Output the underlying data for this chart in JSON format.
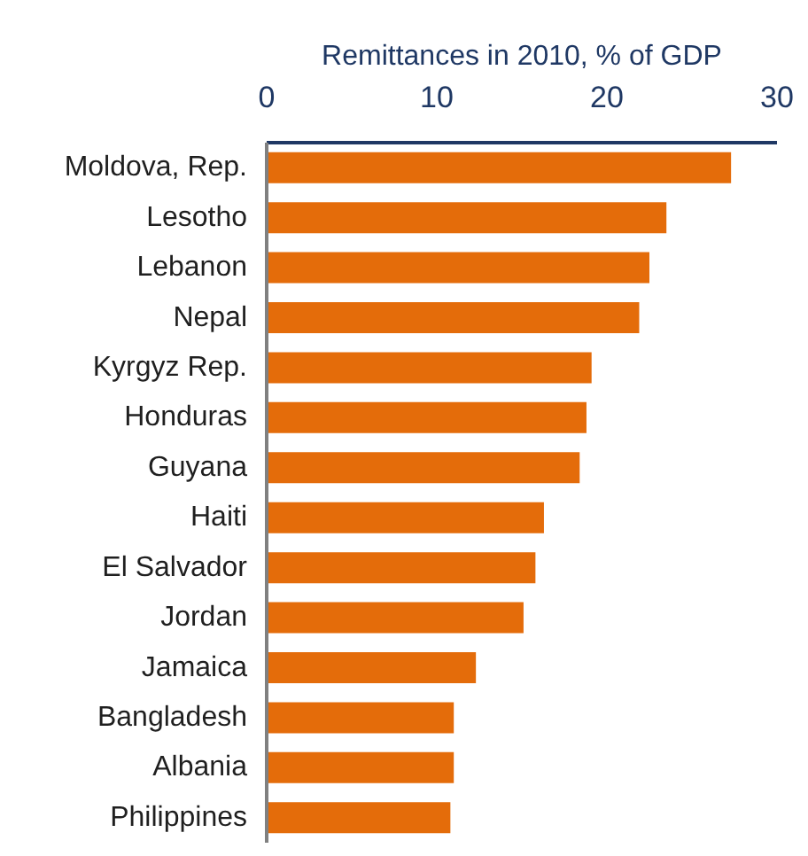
{
  "chart_data": {
    "type": "bar",
    "orientation": "horizontal",
    "xlabel": "Remittances in 2010, % of GDP",
    "categories": [
      "Moldova, Rep.",
      "Lesotho",
      "Lebanon",
      "Nepal",
      "Kyrgyz Rep.",
      "Honduras",
      "Guyana",
      "Haiti",
      "El Salvador",
      "Jordan",
      "Jamaica",
      "Bangladesh",
      "Albania",
      "Philippines"
    ],
    "values": [
      27.3,
      23.5,
      22.5,
      21.9,
      19.1,
      18.8,
      18.4,
      16.3,
      15.8,
      15.1,
      12.3,
      11.0,
      11.0,
      10.8
    ],
    "color": "#e46c0a",
    "xlim": [
      0,
      30
    ],
    "xticks": [
      0,
      10,
      20,
      30
    ],
    "grid": false
  }
}
